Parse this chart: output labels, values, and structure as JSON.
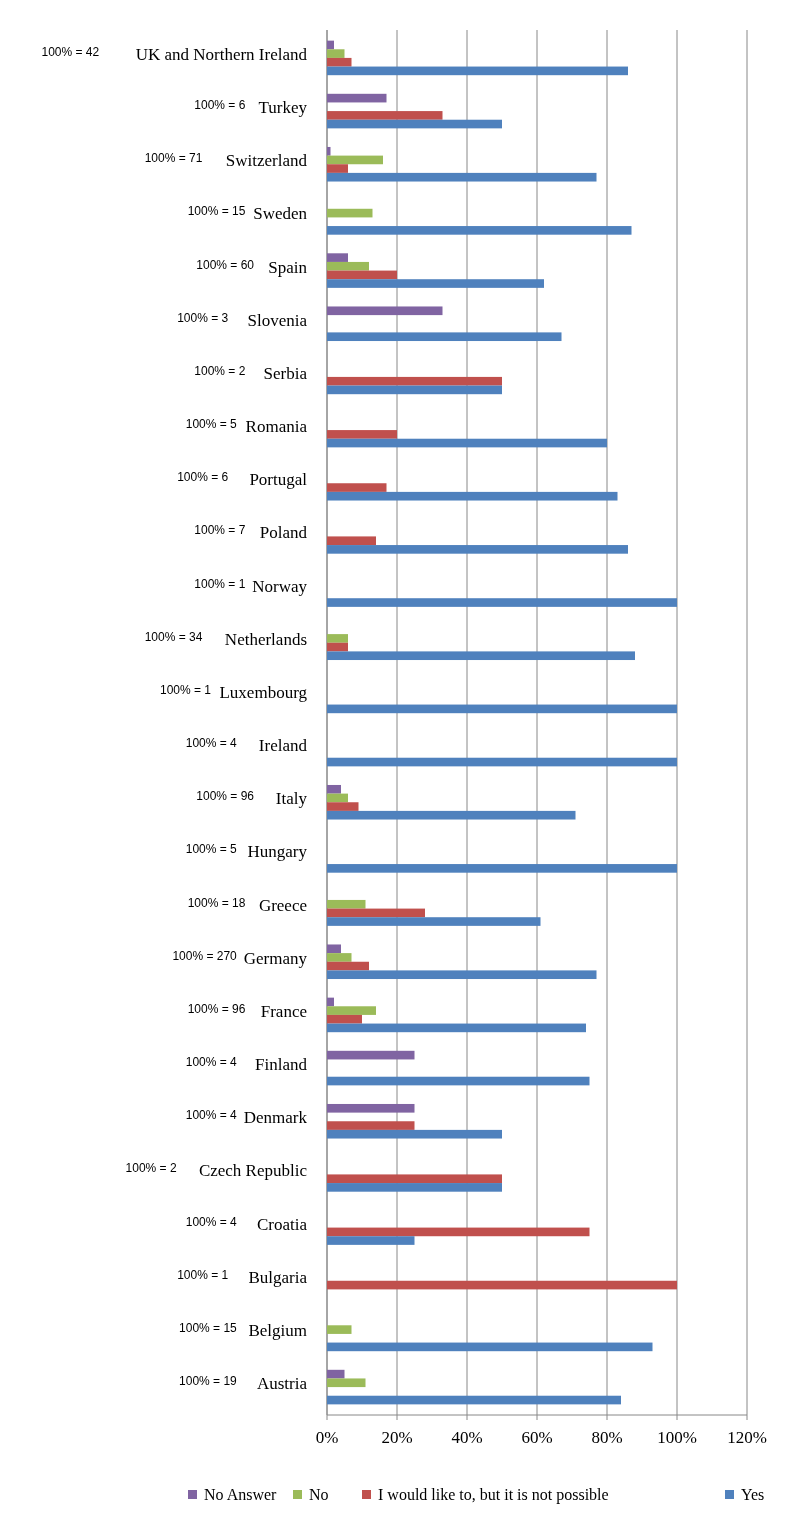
{
  "chart_data": {
    "type": "bar",
    "orientation": "horizontal",
    "categories": [
      "UK and Northern Ireland",
      "Turkey",
      "Switzerland",
      "Sweden",
      "Spain",
      "Slovenia",
      "Serbia",
      "Romania",
      "Portugal",
      "Poland",
      "Norway",
      "Netherlands",
      "Luxembourg",
      "Ireland",
      "Italy",
      "Hungary",
      "Greece",
      "Germany",
      "France",
      "Finland",
      "Denmark",
      "Czech Republic",
      "Croatia",
      "Bulgaria",
      "Belgium",
      "Austria"
    ],
    "series": [
      {
        "name": "No Answer",
        "color": "#8064a2",
        "values": [
          2,
          17,
          1,
          null,
          6,
          33,
          null,
          null,
          null,
          null,
          null,
          null,
          null,
          null,
          4,
          null,
          null,
          4,
          2,
          25,
          25,
          null,
          null,
          null,
          null,
          5
        ]
      },
      {
        "name": "No",
        "color": "#9bbb59",
        "values": [
          5,
          null,
          16,
          13,
          12,
          null,
          null,
          null,
          null,
          null,
          null,
          6,
          null,
          null,
          6,
          null,
          11,
          7,
          14,
          null,
          null,
          null,
          null,
          null,
          7,
          11
        ]
      },
      {
        "name": "I would like to, but it is not possible",
        "color": "#c0504d",
        "values": [
          7,
          33,
          6,
          null,
          20,
          null,
          50,
          20,
          17,
          14,
          null,
          6,
          null,
          null,
          9,
          null,
          28,
          12,
          10,
          null,
          25,
          50,
          75,
          100,
          null,
          null
        ]
      },
      {
        "name": "Yes",
        "color": "#4f81bd",
        "values": [
          86,
          50,
          77,
          87,
          62,
          67,
          50,
          80,
          83,
          86,
          100,
          88,
          100,
          100,
          71,
          100,
          61,
          77,
          74,
          75,
          50,
          50,
          25,
          null,
          93,
          84
        ]
      }
    ],
    "annotations": [
      "100% = 42",
      "100% = 6",
      "100% = 71",
      "100% = 15",
      "100% = 60",
      "100% = 3",
      "100% = 2",
      "100% = 5",
      "100% = 6",
      "100% = 7",
      "100% = 1",
      "100% = 34",
      "100% = 1",
      "100% = 4",
      "100% = 96",
      "100% = 5",
      "100% = 18",
      "100% = 270",
      "100% = 96",
      "100% = 4",
      "100% = 4",
      "100% = 2",
      "100% = 4",
      "100% = 1",
      "100% = 15",
      "100% = 19"
    ],
    "xlim": [
      0,
      120
    ],
    "xticks": [
      {
        "value": 0,
        "label": "0%"
      },
      {
        "value": 20,
        "label": "20%"
      },
      {
        "value": 40,
        "label": "40%"
      },
      {
        "value": 60,
        "label": "60%"
      },
      {
        "value": 80,
        "label": "80%"
      },
      {
        "value": 100,
        "label": "100%"
      },
      {
        "value": 120,
        "label": "120%"
      }
    ],
    "grid": "x",
    "legend": "bottom"
  }
}
